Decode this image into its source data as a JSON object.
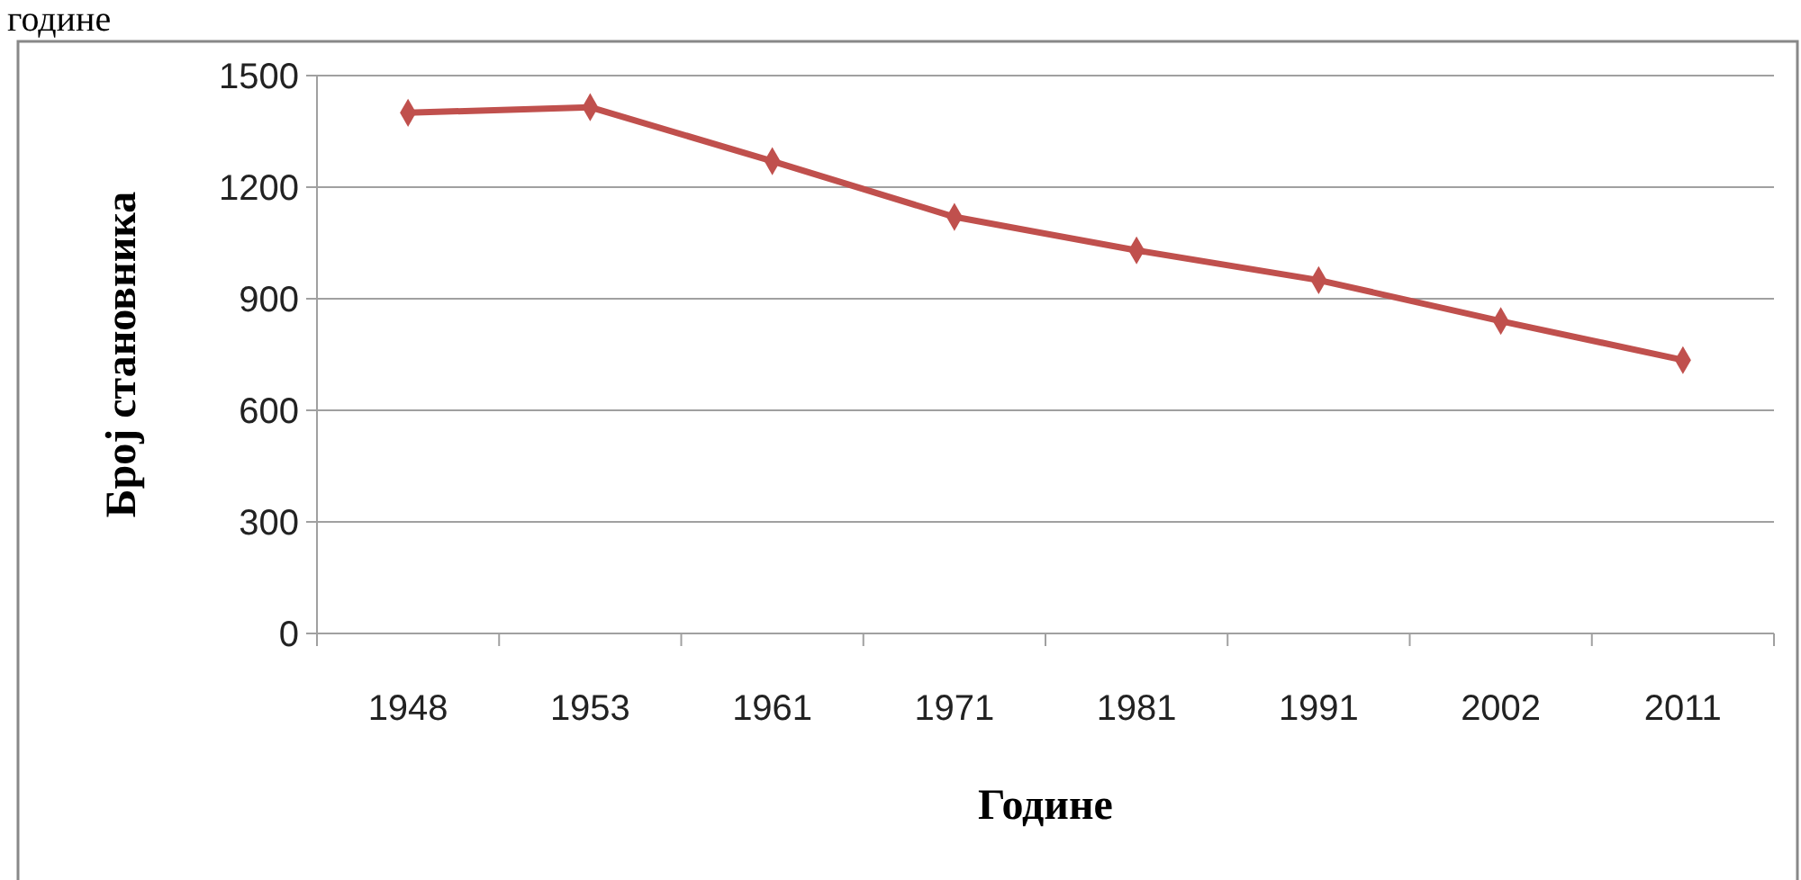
{
  "chart_data": {
    "type": "line",
    "xlabel": "Године",
    "ylabel": "Број становника",
    "annotations": [
      "године"
    ],
    "categories": [
      "1948",
      "1953",
      "1961",
      "1971",
      "1981",
      "1991",
      "2002",
      "2011"
    ],
    "series": [
      {
        "color": "#c0504d",
        "values": [
          1400,
          1415,
          1270,
          1120,
          1030,
          950,
          840,
          735
        ]
      }
    ],
    "ylim": [
      0,
      1500
    ],
    "yticks": [
      0,
      300,
      600,
      900,
      1200,
      1500
    ],
    "grid": "y",
    "marker": "diamond"
  }
}
